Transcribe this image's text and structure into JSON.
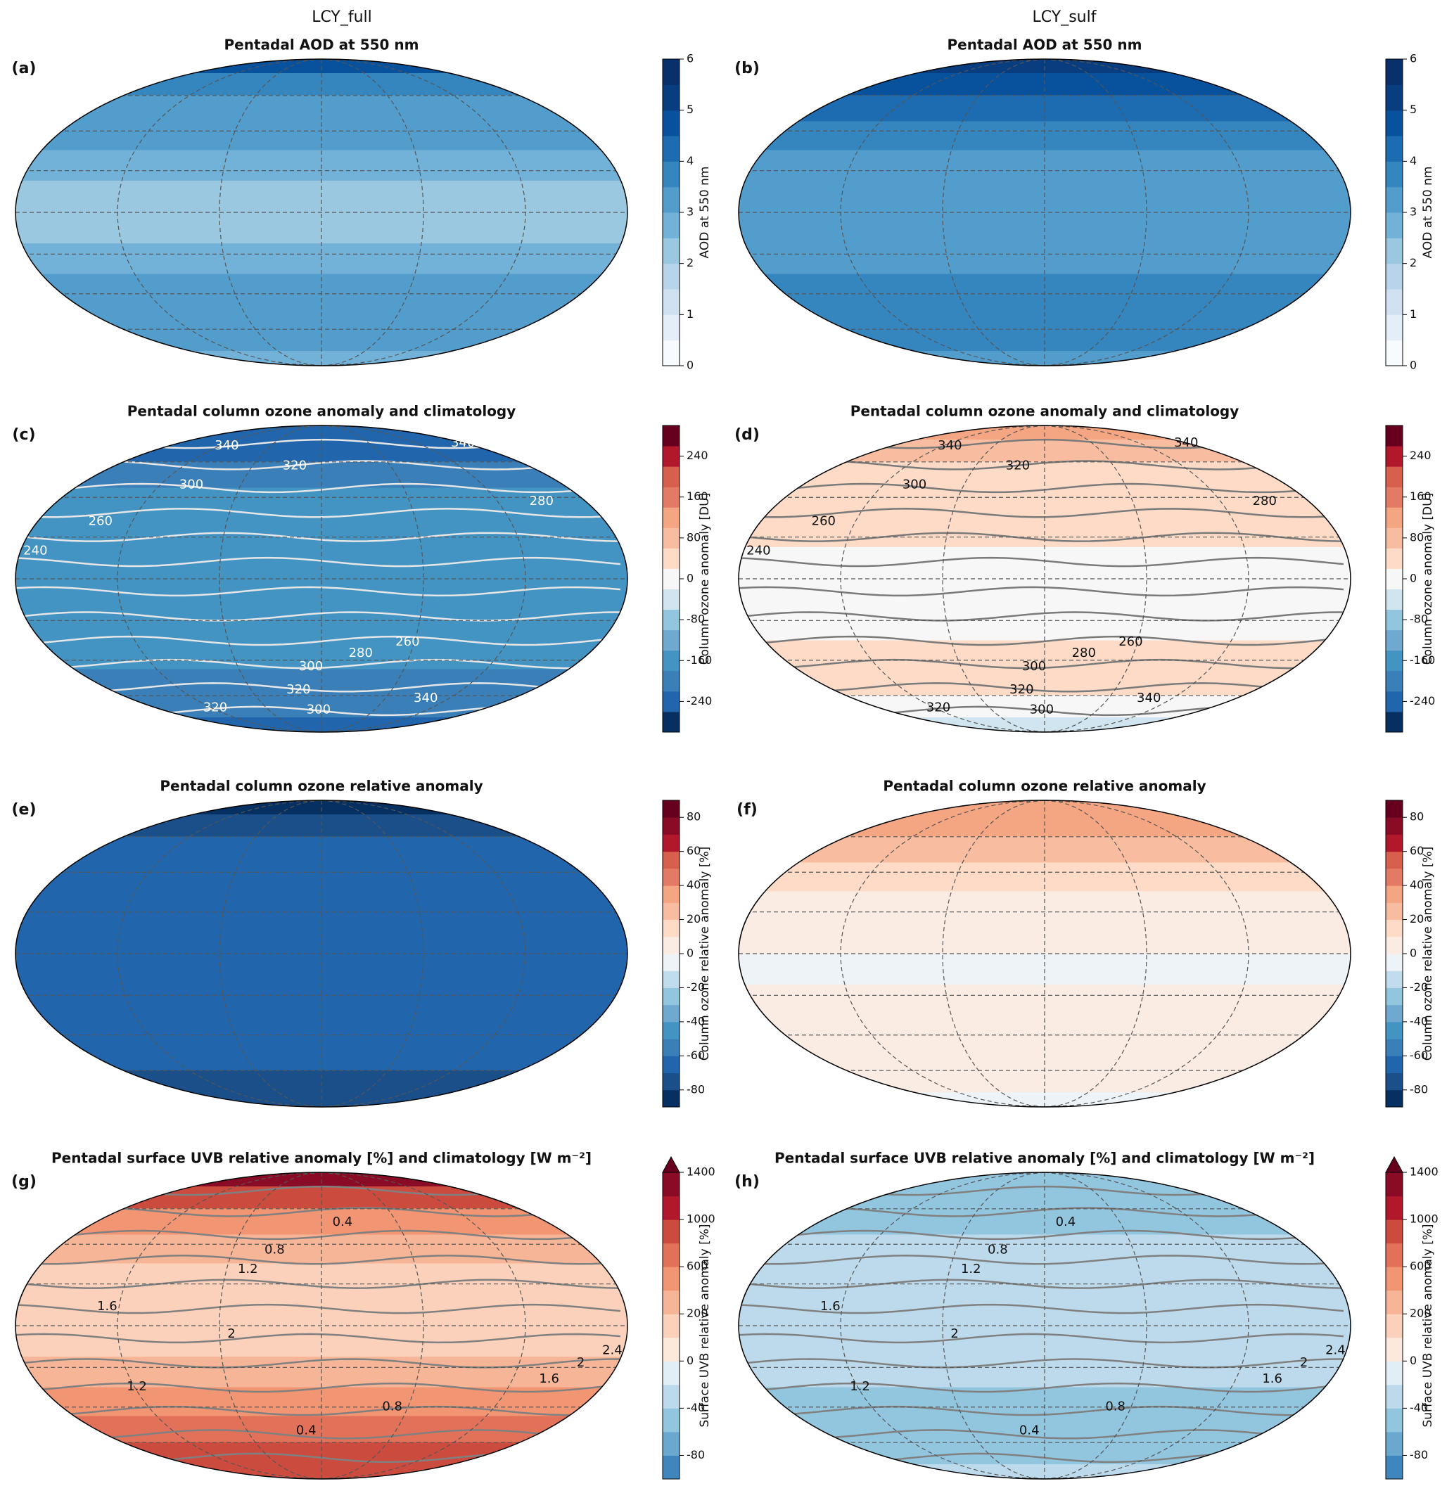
{
  "columns": [
    "LCY_full",
    "LCY_sulf"
  ],
  "chart_data": [
    {
      "type": "map",
      "panel_label": "(a)",
      "title": "Pentadal AOD at 550 nm",
      "colorbar_label": "AOD at 550 nm",
      "levels": [
        0,
        0.5,
        1,
        1.5,
        2,
        2.5,
        3,
        3.5,
        4,
        4.5,
        5,
        5.5,
        6
      ],
      "colors": [
        "#f7fbff",
        "#e3eef8",
        "#d0e1f2",
        "#b7d4ea",
        "#9ac8e0",
        "#73b2d8",
        "#529dcc",
        "#3585bf",
        "#1d6cb1",
        "#08519c",
        "#083d7f",
        "#08306b"
      ],
      "cticks": [
        0,
        1,
        2,
        3,
        4,
        5,
        6
      ],
      "values": [
        4.5,
        3.8,
        3.3,
        3.0,
        2.7,
        2.3,
        2.3,
        2.7,
        3.0,
        3.2,
        3.0,
        2.7
      ]
    },
    {
      "type": "map",
      "panel_label": "(b)",
      "title": "Pentadal AOD at 550 nm",
      "colorbar_label": "AOD at 550 nm",
      "levels": [
        0,
        0.5,
        1,
        1.5,
        2,
        2.5,
        3,
        3.5,
        4,
        4.5,
        5,
        5.5,
        6
      ],
      "colors": [
        "#f7fbff",
        "#e3eef8",
        "#d0e1f2",
        "#b7d4ea",
        "#9ac8e0",
        "#73b2d8",
        "#529dcc",
        "#3585bf",
        "#1d6cb1",
        "#08519c",
        "#083d7f",
        "#08306b"
      ],
      "cticks": [
        0,
        1,
        2,
        3,
        4,
        5,
        6
      ],
      "values": [
        5.2,
        4.6,
        4.0,
        3.7,
        3.4,
        3.2,
        3.2,
        3.4,
        3.7,
        3.8,
        3.7,
        3.3
      ]
    },
    {
      "type": "map",
      "panel_label": "(c)",
      "title": "Pentadal column ozone anomaly and climatology",
      "colorbar_label": "Column ozone anomaly [DU]",
      "levels": [
        -300,
        -260,
        -220,
        -180,
        -140,
        -100,
        -60,
        -20,
        20,
        60,
        100,
        140,
        180,
        220,
        260,
        300
      ],
      "colors": [
        "#053061",
        "#2166ac",
        "#3a7fb8",
        "#4393c3",
        "#6fa9d0",
        "#92c5de",
        "#d1e5f0",
        "#f7f7f7",
        "#fddbc7",
        "#f8bda0",
        "#f4a582",
        "#e27a65",
        "#d6604d",
        "#b2182b",
        "#67001f"
      ],
      "cticks": [
        -240,
        -160,
        -80,
        0,
        80,
        160,
        240
      ],
      "values": [
        -260,
        -230,
        -200,
        -180,
        -160,
        -150,
        -150,
        -160,
        -180,
        -200,
        -220,
        -240
      ],
      "contour_color": "#e6e6e6",
      "contour_labels": [
        340,
        320,
        300,
        280,
        260,
        240,
        280,
        260,
        300,
        320,
        340,
        320,
        300,
        340
      ]
    },
    {
      "type": "map",
      "panel_label": "(d)",
      "title": "Pentadal column ozone anomaly and climatology",
      "colorbar_label": "Column ozone anomaly [DU]",
      "levels": [
        -300,
        -260,
        -220,
        -180,
        -140,
        -100,
        -60,
        -20,
        20,
        60,
        100,
        140,
        180,
        220,
        260,
        300
      ],
      "colors": [
        "#053061",
        "#2166ac",
        "#3a7fb8",
        "#4393c3",
        "#6fa9d0",
        "#92c5de",
        "#d1e5f0",
        "#f7f7f7",
        "#fddbc7",
        "#f8bda0",
        "#f4a582",
        "#e27a65",
        "#d6604d",
        "#b2182b",
        "#67001f"
      ],
      "cticks": [
        -240,
        -160,
        -80,
        0,
        80,
        160,
        240
      ],
      "values": [
        100,
        70,
        50,
        30,
        25,
        10,
        -5,
        10,
        25,
        25,
        10,
        -25
      ],
      "contour_color": "#7a7a7a",
      "contour_labels": [
        340,
        320,
        300,
        280,
        260,
        240,
        280,
        260,
        300,
        320,
        340,
        320,
        300,
        340
      ]
    },
    {
      "type": "map",
      "panel_label": "(e)",
      "title": "Pentadal column ozone relative anomaly",
      "colorbar_label": "Column ozone relative anomaly [%]",
      "levels": [
        -90,
        -80,
        -70,
        -60,
        -50,
        -40,
        -30,
        -20,
        -10,
        0,
        10,
        20,
        30,
        40,
        50,
        60,
        70,
        80,
        90
      ],
      "colors": [
        "#053061",
        "#1a4f8a",
        "#2166ac",
        "#3a7fb8",
        "#4393c3",
        "#6fa9d0",
        "#92c5de",
        "#c1dcec",
        "#eef3f7",
        "#faebe3",
        "#fddbc7",
        "#f8bda0",
        "#f4a582",
        "#e27a65",
        "#d6604d",
        "#b2182b",
        "#8a0b25",
        "#67001f"
      ],
      "cticks": [
        -80,
        -60,
        -40,
        -20,
        0,
        20,
        40,
        60,
        80
      ],
      "values": [
        -85,
        -75,
        -65,
        -65,
        -65,
        -65,
        -65,
        -65,
        -65,
        -68,
        -72,
        -78
      ]
    },
    {
      "type": "map",
      "panel_label": "(f)",
      "title": "Pentadal column ozone relative anomaly",
      "colorbar_label": "Column ozone relative anomaly [%]",
      "levels": [
        -90,
        -80,
        -70,
        -60,
        -50,
        -40,
        -30,
        -20,
        -10,
        0,
        10,
        20,
        30,
        40,
        50,
        60,
        70,
        80,
        90
      ],
      "colors": [
        "#053061",
        "#1a4f8a",
        "#2166ac",
        "#3a7fb8",
        "#4393c3",
        "#6fa9d0",
        "#92c5de",
        "#c1dcec",
        "#eef3f7",
        "#faebe3",
        "#fddbc7",
        "#f8bda0",
        "#f4a582",
        "#e27a65",
        "#d6604d",
        "#b2182b",
        "#8a0b25",
        "#67001f"
      ],
      "cticks": [
        -80,
        -60,
        -40,
        -20,
        0,
        20,
        40,
        60,
        80
      ],
      "values": [
        35,
        30,
        20,
        12,
        8,
        5,
        -3,
        5,
        8,
        5,
        3,
        -5
      ]
    },
    {
      "type": "map",
      "panel_label": "(g)",
      "title": "Pentadal surface UVB relative anomaly [%] and climatology [W m⁻²]",
      "colorbar_label": "Surface UVB relative anomaly [%]",
      "levels": [
        -100,
        -80,
        -60,
        -40,
        -20,
        0,
        100,
        200,
        400,
        600,
        800,
        1000,
        1200,
        1400
      ],
      "colors": [
        "#3f86bc",
        "#6aa8d0",
        "#92c5de",
        "#bcdaeb",
        "#e2eef5",
        "#fde8dc",
        "#fbd1bb",
        "#f7b597",
        "#f29573",
        "#e2715a",
        "#cc4b3f",
        "#b2182b",
        "#8a0b25"
      ],
      "extend_color": "#67001f",
      "cticks": [
        -80,
        -40,
        0,
        200,
        600,
        1000,
        1400
      ],
      "values": [
        1300,
        900,
        500,
        300,
        150,
        150,
        150,
        250,
        500,
        700,
        900,
        800
      ],
      "contour_color": "#808080",
      "contour_labels": [
        0.4,
        0.8,
        1.2,
        1.6,
        2,
        2,
        2.4,
        1.6,
        1.2,
        0.8,
        0.4
      ]
    },
    {
      "type": "map",
      "panel_label": "(h)",
      "title": "Pentadal surface UVB relative anomaly [%] and climatology [W m⁻²]",
      "colorbar_label": "Surface UVB relative anomaly [%]",
      "levels": [
        -100,
        -80,
        -60,
        -40,
        -20,
        0,
        100,
        200,
        400,
        600,
        800,
        1000,
        1200,
        1400
      ],
      "colors": [
        "#3f86bc",
        "#6aa8d0",
        "#92c5de",
        "#bcdaeb",
        "#e2eef5",
        "#fde8dc",
        "#fbd1bb",
        "#f7b597",
        "#f29573",
        "#e2715a",
        "#cc4b3f",
        "#b2182b",
        "#8a0b25"
      ],
      "extend_color": "#67001f",
      "cticks": [
        -80,
        -40,
        0,
        200,
        600,
        1000,
        1400
      ],
      "values": [
        -50,
        -45,
        -42,
        -40,
        -30,
        -30,
        -30,
        -35,
        -42,
        -45,
        -45,
        -40
      ],
      "contour_color": "#808080",
      "contour_labels": [
        0.4,
        0.8,
        1.2,
        1.6,
        2,
        2,
        2.4,
        1.6,
        1.2,
        0.8,
        0.4
      ]
    }
  ]
}
